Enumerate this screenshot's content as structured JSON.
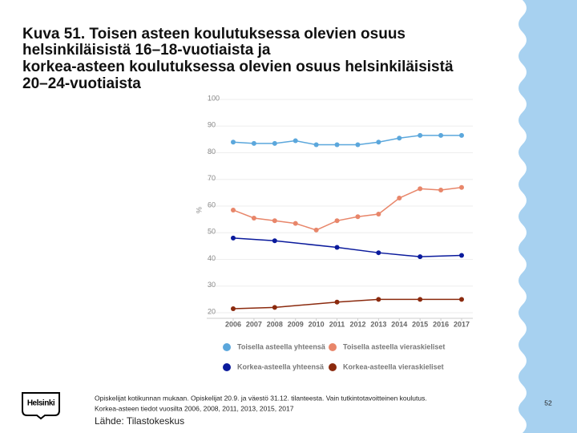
{
  "title": [
    "Kuva 51. Toisen asteen koulutuksessa olevien osuus",
    "helsinkiläisistä 16–18-vuotiaista ja",
    "korkea-asteen koulutuksessa olevien osuus helsinkiläisistä",
    "20–24-vuotiaista"
  ],
  "chart_data": {
    "type": "line",
    "ylabel": "%",
    "xlim": [
      2006,
      2017
    ],
    "xticks": [
      2006,
      2007,
      2008,
      2009,
      2010,
      2011,
      2012,
      2013,
      2014,
      2015,
      2016,
      2017
    ],
    "ylim": [
      20,
      100
    ],
    "yticks": [
      20,
      30,
      40,
      50,
      60,
      70,
      80,
      90,
      100
    ],
    "grid": true,
    "series": [
      {
        "name": "Toisella asteella yhteensä",
        "color": "#5ba7dc",
        "x": [
          2006,
          2007,
          2008,
          2009,
          2010,
          2011,
          2012,
          2013,
          2014,
          2015,
          2016,
          2017
        ],
        "values": [
          84,
          83.5,
          83.5,
          84.5,
          83,
          83,
          83,
          84,
          85.5,
          86.5,
          86.5,
          86.5
        ]
      },
      {
        "name": "Toisella asteella vieraskieliset",
        "color": "#e8866a",
        "x": [
          2006,
          2007,
          2008,
          2009,
          2010,
          2011,
          2012,
          2013,
          2014,
          2015,
          2016,
          2017
        ],
        "values": [
          58.5,
          55.5,
          54.5,
          53.5,
          51,
          54.5,
          56,
          57,
          63,
          66.5,
          66,
          67
        ]
      },
      {
        "name": "Korkea-asteella yhteensä",
        "color": "#0a1a9c",
        "x": [
          2006,
          2008,
          2011,
          2013,
          2015,
          2017
        ],
        "values": [
          48,
          47,
          44.5,
          42.5,
          41,
          41.5
        ]
      },
      {
        "name": "Korkea-asteella vieraskieliset",
        "color": "#8b2a0e",
        "x": [
          2006,
          2008,
          2011,
          2013,
          2015,
          2017
        ],
        "values": [
          21.5,
          22,
          24,
          25,
          25,
          25
        ]
      }
    ]
  },
  "logo": "Helsinki",
  "footnote": [
    "Opiskelijat kotikunnan mukaan. Opiskelijat 20.9. ja väestö 31.12. tilanteesta. Vain tutkintotavoitteinen koulutus.",
    "Korkea-asteen tiedot vuosilta 2006, 2008, 2011, 2013, 2015, 2017"
  ],
  "source": "Lähde: Tilastokeskus",
  "page_number": "52"
}
